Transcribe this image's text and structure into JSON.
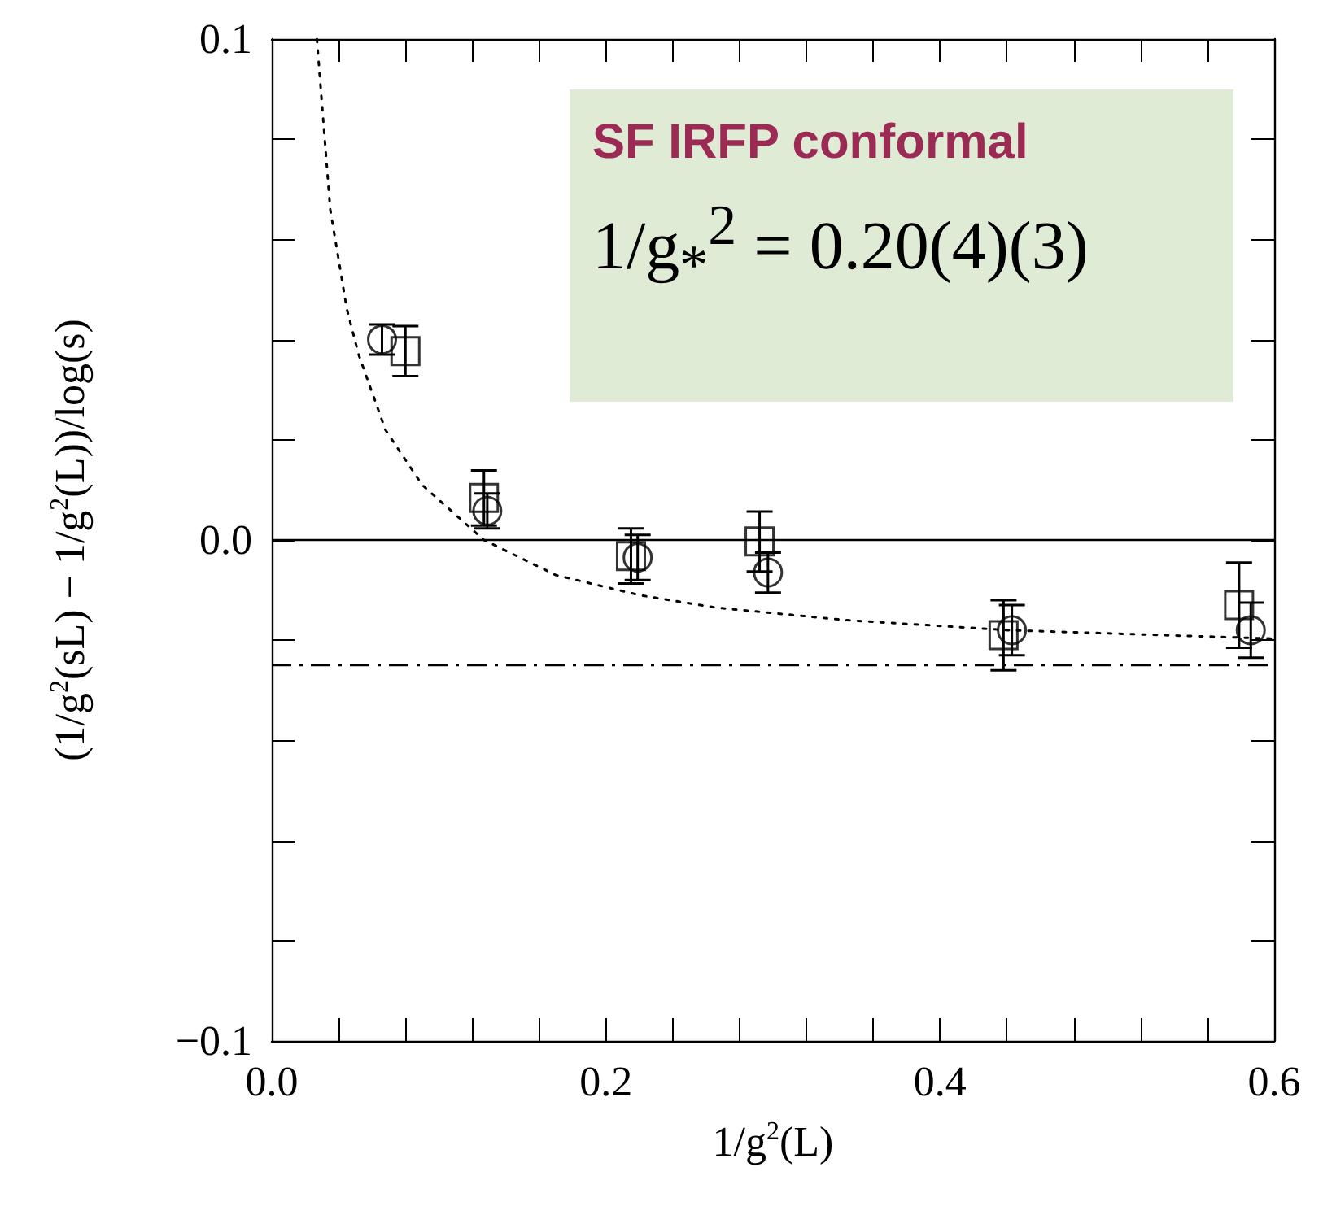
{
  "chart_data": {
    "type": "scatter",
    "xlabel": "1/g$^{2}$(L)",
    "ylabel": "(1/g$^{2}$(sL) − 1/g$^{2}$(L))/log(s)",
    "annotations": [
      "SF IRFP conformal",
      "1/g$_{*}$$^{2}$ = 0.20(4)(3)"
    ],
    "xlim": [
      0,
      0.6
    ],
    "xticks": [
      {
        "value": 0,
        "label": "0.0"
      },
      {
        "value": 0.04,
        "label": null
      },
      {
        "value": 0.08,
        "label": null
      },
      {
        "value": 0.12,
        "label": null
      },
      {
        "value": 0.16,
        "label": null
      },
      0.2,
      {
        "value": 0.24,
        "label": null
      },
      {
        "value": 0.28,
        "label": null
      },
      {
        "value": 0.32,
        "label": null
      },
      {
        "value": 0.36,
        "label": null
      },
      0.4,
      {
        "value": 0.44,
        "label": null
      },
      {
        "value": 0.48,
        "label": null
      },
      {
        "value": 0.52,
        "label": null
      },
      {
        "value": 0.56,
        "label": null
      },
      0.6
    ],
    "ylim": [
      -0.1,
      0.1
    ],
    "yticks": [
      {
        "value": -0.1,
        "label": "−0.1"
      },
      {
        "value": -0.08,
        "label": null
      },
      {
        "value": -0.06,
        "label": null
      },
      {
        "value": -0.04,
        "label": null
      },
      {
        "value": -0.02,
        "label": null
      },
      {
        "value": 0,
        "label": "0.0"
      },
      {
        "value": 0.02,
        "label": null
      },
      {
        "value": 0.04,
        "label": null
      },
      {
        "value": 0.06,
        "label": null
      },
      {
        "value": 0.08,
        "label": null
      },
      0.1
    ],
    "ref_lines": [
      {
        "axis": "y",
        "value": 0,
        "line_style": "solid"
      },
      {
        "axis": "y",
        "value": -0.025,
        "line_style": "dashdot"
      }
    ],
    "series": [
      {
        "marker": "square",
        "color": "#000000",
        "x": [
          0.08,
          0.127,
          0.215,
          0.292,
          0.438,
          0.579
        ],
        "values": [
          0.0377,
          0.0084,
          -0.0032,
          -0.0003,
          -0.019,
          -0.013
        ],
        "errors": [
          0.005,
          0.0055,
          0.0055,
          0.006,
          0.007,
          0.0085
        ]
      },
      {
        "marker": "circle",
        "color": "#000000",
        "x": [
          0.066,
          0.129,
          0.219,
          0.297,
          0.443,
          0.586
        ],
        "values": [
          0.04,
          0.0058,
          -0.0035,
          -0.0065,
          -0.018,
          -0.018
        ],
        "errors": [
          0.003,
          0.0035,
          0.0045,
          0.004,
          0.005,
          0.0055
        ]
      },
      {
        "type": "line",
        "marker": "none",
        "line_style": "dotted",
        "color": "#000000",
        "x": [
          0.027,
          0.035,
          0.045,
          0.052,
          0.068,
          0.09,
          0.127,
          0.17,
          0.22,
          0.266,
          0.344,
          0.441,
          0.6
        ],
        "values": [
          0.1,
          0.066,
          0.046,
          0.037,
          0.022,
          0.011,
          0,
          -0.007,
          -0.011,
          -0.0135,
          -0.016,
          -0.018,
          -0.0197
        ]
      }
    ]
  }
}
